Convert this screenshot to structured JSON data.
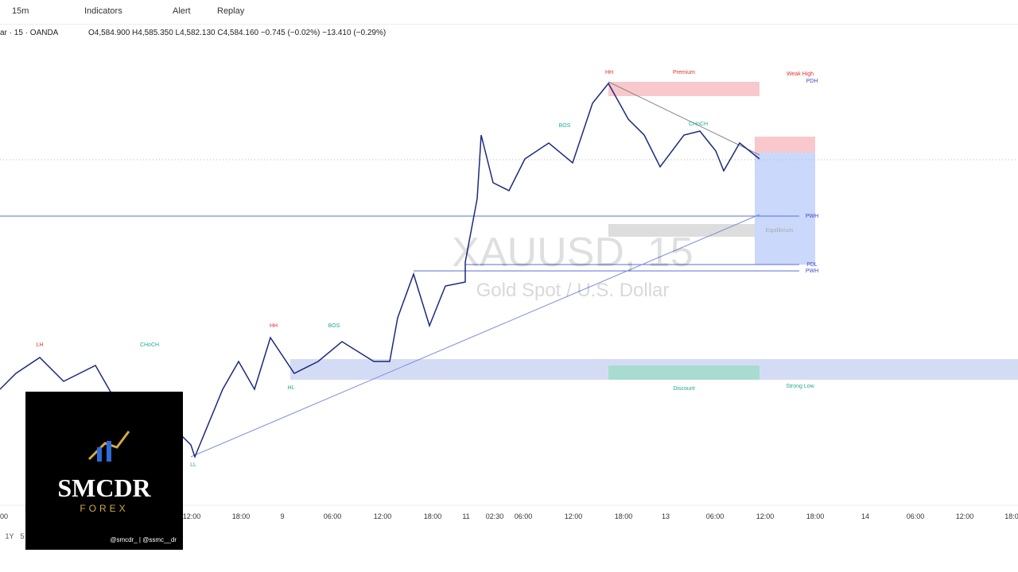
{
  "toolbar": {
    "interval": "15m",
    "indicators": "Indicators",
    "alert": "Alert",
    "replay": "Replay"
  },
  "legend": {
    "symbol": "ar · 15 · OANDA",
    "ohlc": "O4,584.900 H4,585.350 L4,582.130 C4,584.160 −0.745 (−0.02%) −13.410 (−0.29%)"
  },
  "watermark": {
    "symbol": "XAUUSD, 15",
    "description": "Gold Spot / U.S. Dollar"
  },
  "annotations": [
    "HH",
    "Premium",
    "PDH",
    "PWH",
    "PDL",
    "PWH",
    "Equilibrium",
    "Discount",
    "LH",
    "CHoCH",
    "BOS",
    "HH",
    "HL",
    "LL",
    "BOS",
    "CHoCH",
    "Weak High",
    "Strong Low"
  ],
  "time_axis": [
    "00",
    "12:00",
    "18:00",
    "9",
    "06:00",
    "12:00",
    "18:00",
    "11",
    "02:30",
    "06:00",
    "12:00",
    "18:00",
    "13",
    "06:00",
    "12:00",
    "18:00",
    "14",
    "06:00",
    "12:00",
    "18:0"
  ],
  "range_buttons": [
    "1Y",
    "5"
  ],
  "logo": {
    "name": "SMCDR",
    "sub": "FOREX",
    "handles": "@smcdr_ | @ssmc__dr"
  }
}
